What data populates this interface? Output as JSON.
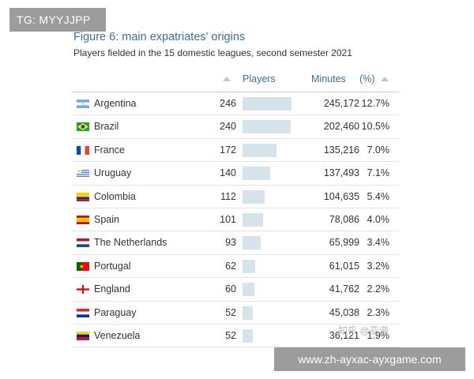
{
  "watermark_top": "TG: MYYJJPP",
  "title": "Figure 6: main expatriates' origins",
  "subtitle": "Players fielded in the 15 domestic leagues, second semester 2021",
  "headers": {
    "players": "Players",
    "minutes": "Minutes",
    "pct": "(%)"
  },
  "colors": {
    "title": "#3c6f95",
    "bar": "#d5e3ea"
  },
  "chart_data": {
    "type": "table",
    "title": "Figure 6: main expatriates' origins",
    "subtitle": "Players fielded in the 15 domestic leagues, second semester 2021",
    "columns": [
      "",
      "Players",
      "Minutes",
      "(%)"
    ],
    "rows": [
      {
        "country": "Argentina",
        "flag": "argentina-flag-icon",
        "players": "246",
        "players_value": 246,
        "minutes": "245,172",
        "pct": "12.7%"
      },
      {
        "country": "Brazil",
        "flag": "brazil-flag-icon",
        "players": "240",
        "players_value": 240,
        "minutes": "202,460",
        "pct": "10.5%"
      },
      {
        "country": "France",
        "flag": "france-flag-icon",
        "players": "172",
        "players_value": 172,
        "minutes": "135,216",
        "pct": "7.0%"
      },
      {
        "country": "Uruguay",
        "flag": "uruguay-flag-icon",
        "players": "140",
        "players_value": 140,
        "minutes": "137,493",
        "pct": "7.1%"
      },
      {
        "country": "Colombia",
        "flag": "colombia-flag-icon",
        "players": "112",
        "players_value": 112,
        "minutes": "104,635",
        "pct": "5.4%"
      },
      {
        "country": "Spain",
        "flag": "spain-flag-icon",
        "players": "101",
        "players_value": 101,
        "minutes": "78,086",
        "pct": "4.0%"
      },
      {
        "country": "The Netherlands",
        "flag": "netherlands-flag-icon",
        "players": "93",
        "players_value": 93,
        "minutes": "65,999",
        "pct": "3.4%"
      },
      {
        "country": "Portugal",
        "flag": "portugal-flag-icon",
        "players": "62",
        "players_value": 62,
        "minutes": "61,015",
        "pct": "3.2%"
      },
      {
        "country": "England",
        "flag": "england-flag-icon",
        "players": "60",
        "players_value": 60,
        "minutes": "41,762",
        "pct": "2.2%"
      },
      {
        "country": "Paraguay",
        "flag": "paraguay-flag-icon",
        "players": "52",
        "players_value": 52,
        "minutes": "45,038",
        "pct": "2.3%"
      },
      {
        "country": "Venezuela",
        "flag": "venezuela-flag-icon",
        "players": "52",
        "players_value": 52,
        "minutes": "36,121",
        "pct": "1.9%"
      }
    ]
  },
  "watermark_cn": "知乎 @亚谱",
  "watermark_url": "www.zh-ayxac-ayxgame.com"
}
